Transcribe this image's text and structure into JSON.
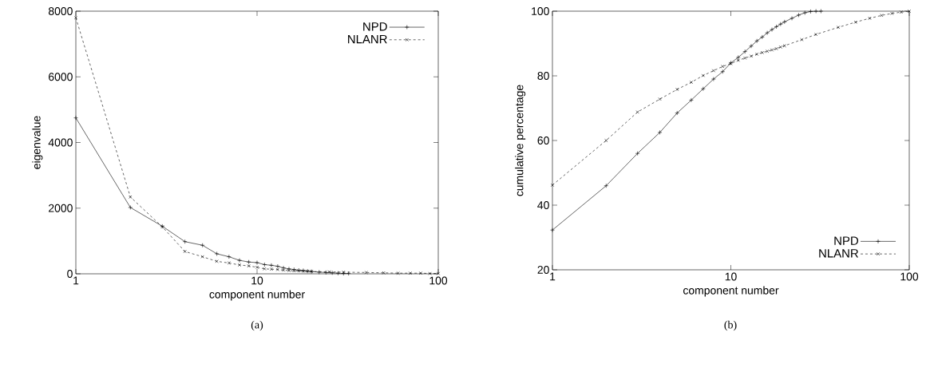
{
  "chart_data": [
    {
      "type": "line",
      "xlabel": "component number",
      "ylabel": "eigenvalue",
      "log": "x",
      "xlim": [
        1,
        100
      ],
      "ylim": [
        0,
        8000
      ],
      "xticks": [
        1,
        10,
        100
      ],
      "yticks": [
        0,
        2000,
        4000,
        6000,
        8000
      ],
      "grid": false,
      "legend": "top right",
      "annotations": [
        "(a)"
      ],
      "series": [
        {
          "name": "NPD",
          "color": "#000000",
          "line_style": "solid",
          "marker": "plus",
          "x": [
            1,
            2,
            3,
            4,
            5,
            6,
            7,
            8,
            9,
            10,
            11,
            12,
            13,
            14,
            15,
            16,
            17,
            18,
            19,
            20,
            22,
            24,
            26,
            28,
            30,
            32
          ],
          "values": [
            4750,
            2020,
            1450,
            980,
            870,
            610,
            520,
            410,
            360,
            340,
            280,
            260,
            230,
            180,
            150,
            130,
            110,
            100,
            80,
            70,
            50,
            40,
            30,
            20,
            10,
            10
          ]
        },
        {
          "name": "NLANR",
          "color": "#000000",
          "line_style": "dashed",
          "marker": "cross",
          "x": [
            1,
            2,
            3,
            4,
            5,
            6,
            7,
            8,
            9,
            10,
            11,
            12,
            13,
            14,
            15,
            16,
            17,
            18,
            19,
            20,
            25,
            30,
            40,
            50,
            60,
            70,
            80,
            90,
            100
          ],
          "values": [
            7800,
            2340,
            1430,
            680,
            520,
            380,
            330,
            270,
            240,
            200,
            150,
            140,
            130,
            110,
            100,
            90,
            90,
            80,
            80,
            70,
            60,
            50,
            40,
            30,
            20,
            20,
            20,
            10,
            10
          ]
        }
      ]
    },
    {
      "type": "line",
      "xlabel": "component number",
      "ylabel": "cumulative percentage",
      "log": "x",
      "xlim": [
        1,
        100
      ],
      "ylim": [
        20,
        100
      ],
      "xticks": [
        1,
        10,
        100
      ],
      "yticks": [
        20,
        40,
        60,
        80,
        100
      ],
      "grid": false,
      "legend": "bottom right",
      "annotations": [
        "(b)"
      ],
      "series": [
        {
          "name": "NPD",
          "color": "#000000",
          "line_style": "solid",
          "marker": "plus",
          "x": [
            1,
            2,
            3,
            4,
            5,
            6,
            7,
            8,
            9,
            10,
            11,
            12,
            13,
            14,
            15,
            16,
            17,
            18,
            19,
            20,
            22,
            24,
            26,
            28,
            30,
            32
          ],
          "values": [
            32.3,
            46,
            56,
            62.5,
            68.5,
            72.5,
            76,
            79,
            81.3,
            84,
            85.7,
            87.5,
            89.2,
            90.8,
            92,
            93.3,
            94.3,
            95.2,
            96,
            96.7,
            97.8,
            98.8,
            99.5,
            99.9,
            100,
            100
          ]
        },
        {
          "name": "NLANR",
          "color": "#000000",
          "line_style": "dashed",
          "marker": "cross",
          "x": [
            1,
            2,
            3,
            4,
            5,
            6,
            7,
            8,
            9,
            10,
            11,
            12,
            13,
            14,
            15,
            16,
            17,
            18,
            19,
            20,
            25,
            30,
            40,
            50,
            60,
            70,
            80,
            90,
            100
          ],
          "values": [
            46.2,
            60,
            68.8,
            72.8,
            75.8,
            78,
            80.1,
            81.6,
            82.9,
            83.8,
            84.8,
            85.5,
            86.1,
            86.7,
            87.2,
            87.6,
            88,
            88.4,
            88.9,
            89.3,
            91.2,
            92.8,
            95,
            96.6,
            97.8,
            98.7,
            99.3,
            99.7,
            100
          ]
        }
      ]
    }
  ]
}
